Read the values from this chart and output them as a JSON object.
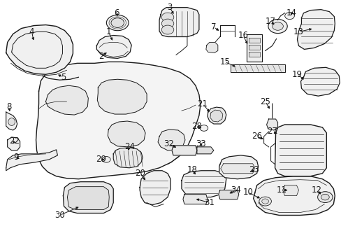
{
  "bg_color": "#ffffff",
  "line_color": "#1a1a1a",
  "figsize": [
    4.89,
    3.6
  ],
  "dpi": 100,
  "font_size": 8.5,
  "font_size_small": 7.0
}
